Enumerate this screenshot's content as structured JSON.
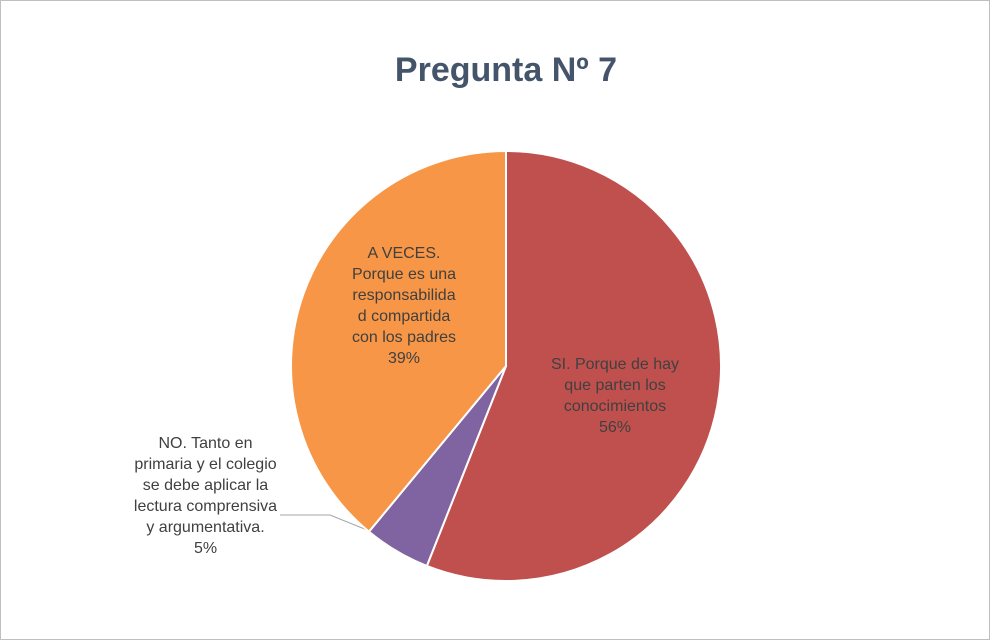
{
  "chart_data": {
    "type": "pie",
    "title": "Pregunta Nº 7",
    "categories": [
      "SI. Porque de hay que parten los conocimientos",
      "NO. Tanto en primaria y el colegio se debe aplicar la lectura comprensiva y argumentativa.",
      "A VECES. Porque es una responsabilidad compartida con los padres"
    ],
    "values": [
      56,
      5,
      39
    ],
    "value_labels": [
      "56%",
      "5%",
      "39%"
    ],
    "colors": [
      "#c0504d",
      "#8064a2",
      "#f79646"
    ]
  }
}
